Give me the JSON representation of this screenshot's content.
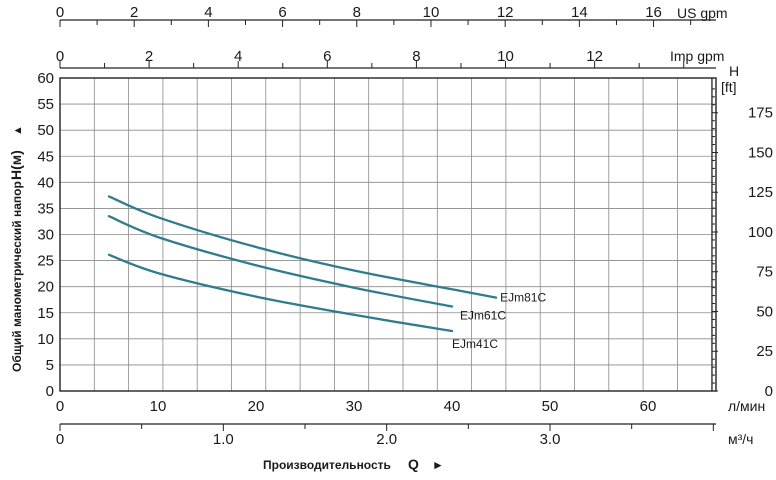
{
  "chart_data": {
    "type": "line",
    "ylabel": "Общий манометрический напор",
    "ylabel_symbol": "H(м)",
    "ylabel_arrow": "▲",
    "xlabel": "Производительность",
    "xlabel_symbol": "Q",
    "xlabel_arrow": "►",
    "x_unit_lmin": "л/мин",
    "x_unit_m3h": "м³/ч",
    "top_unit_us": "US gpm",
    "top_unit_imp": "Imp gpm",
    "right_unit_symbol": "H",
    "right_unit": "[ft]",
    "xlim": [
      0,
      67
    ],
    "ylim": [
      0,
      60
    ],
    "grid": true,
    "x_ticks_lmin": [
      "0",
      "10",
      "20",
      "30",
      "40",
      "50",
      "60"
    ],
    "x_ticks_m3h": [
      "0",
      "1.0",
      "2.0",
      "3.0"
    ],
    "x_ticks_usgpm": [
      "0",
      "2",
      "4",
      "6",
      "8",
      "10",
      "12",
      "14",
      "16"
    ],
    "x_ticks_impgpm": [
      "0",
      "2",
      "4",
      "6",
      "8",
      "10",
      "12"
    ],
    "y_ticks_m": [
      "0",
      "5",
      "10",
      "15",
      "20",
      "25",
      "30",
      "35",
      "40",
      "45",
      "50",
      "55",
      "60"
    ],
    "y_ticks_ft": [
      "0",
      "25",
      "50",
      "75",
      "100",
      "125",
      "150",
      "175"
    ],
    "series": [
      {
        "name": "EJm81C",
        "x": [
          5,
          10,
          20,
          30,
          40,
          44.5
        ],
        "y": [
          37.3,
          33.3,
          27.6,
          23.1,
          19.5,
          17.9
        ]
      },
      {
        "name": "EJm61C",
        "x": [
          5,
          10,
          20,
          30,
          40
        ],
        "y": [
          33.5,
          29.5,
          24.1,
          19.8,
          16.2
        ]
      },
      {
        "name": "EJm41C",
        "x": [
          5,
          10,
          20,
          30,
          40
        ],
        "y": [
          26.1,
          22.6,
          18.1,
          14.6,
          11.5
        ]
      }
    ],
    "line_color": "#2e7d8c"
  }
}
